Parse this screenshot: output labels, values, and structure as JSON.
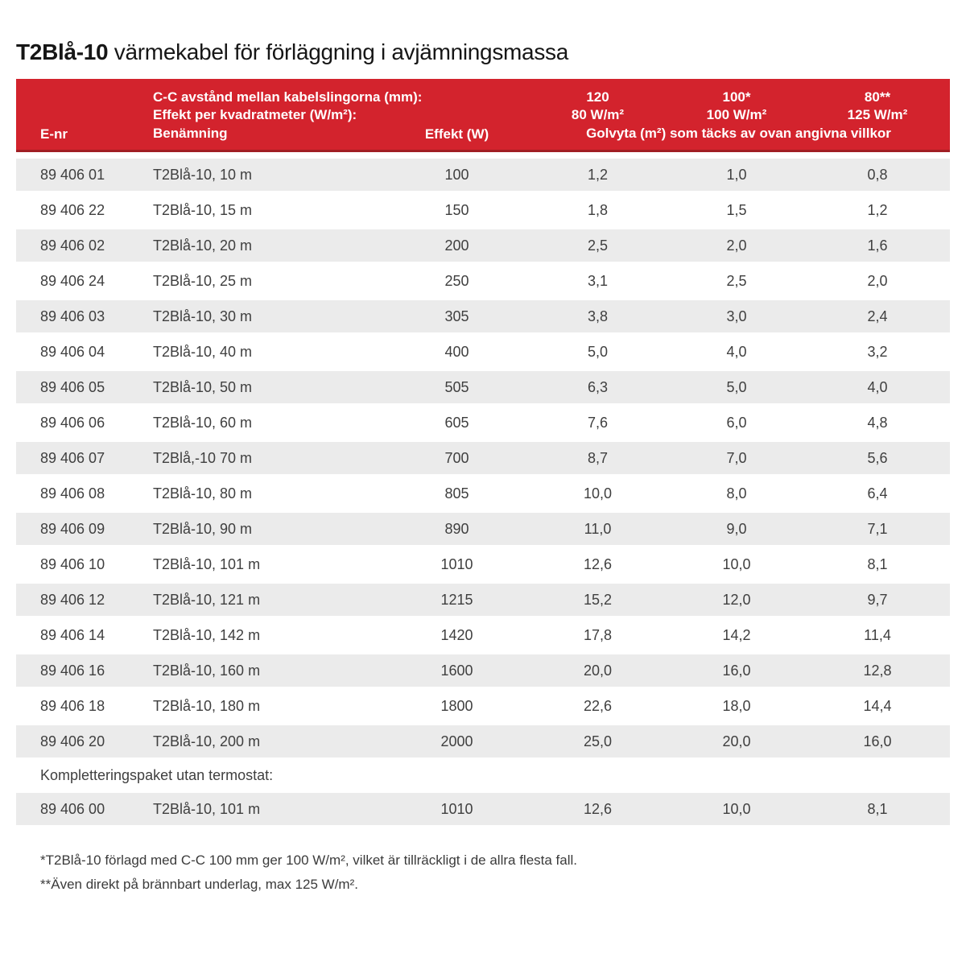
{
  "title": {
    "product": "T2Blå-10",
    "subtitle": " värmekabel för förläggning i avjämningsmassa"
  },
  "colors": {
    "header_red": "#d3232d",
    "header_dark_line": "#a01e23",
    "stripe_gray": "#ebebeb",
    "body_text": "#3f3f3f"
  },
  "table": {
    "header": {
      "enr": "E-nr",
      "name_line1": "C-C avstånd mellan kabelslingorna (mm):",
      "name_line2": "Effekt per kvadratmeter (W/m²):",
      "name_line3": "Benämning",
      "effekt": "Effekt (W)",
      "cc_columns": [
        {
          "cc": "120",
          "wm2": "80 W/m²"
        },
        {
          "cc": "100*",
          "wm2": "100 W/m²"
        },
        {
          "cc": "80**",
          "wm2": "125 W/m²"
        }
      ],
      "span_label": "Golvyta (m²) som täcks av ovan angivna villkor"
    },
    "rows": [
      {
        "enr": "89 406 01",
        "name": "T2Blå-10, 10 m",
        "effekt": "100",
        "v120": "1,2",
        "v100": "1,0",
        "v80": "0,8"
      },
      {
        "enr": "89 406 22",
        "name": "T2Blå-10, 15 m",
        "effekt": "150",
        "v120": "1,8",
        "v100": "1,5",
        "v80": "1,2"
      },
      {
        "enr": "89 406 02",
        "name": "T2Blå-10, 20 m",
        "effekt": "200",
        "v120": "2,5",
        "v100": "2,0",
        "v80": "1,6"
      },
      {
        "enr": "89 406 24",
        "name": "T2Blå-10, 25 m",
        "effekt": "250",
        "v120": "3,1",
        "v100": "2,5",
        "v80": "2,0"
      },
      {
        "enr": "89 406 03",
        "name": "T2Blå-10, 30 m",
        "effekt": "305",
        "v120": "3,8",
        "v100": "3,0",
        "v80": "2,4"
      },
      {
        "enr": "89 406 04",
        "name": "T2Blå-10, 40 m",
        "effekt": "400",
        "v120": "5,0",
        "v100": "4,0",
        "v80": "3,2"
      },
      {
        "enr": "89 406 05",
        "name": "T2Blå-10, 50 m",
        "effekt": "505",
        "v120": "6,3",
        "v100": "5,0",
        "v80": "4,0"
      },
      {
        "enr": "89 406 06",
        "name": "T2Blå-10, 60 m",
        "effekt": "605",
        "v120": "7,6",
        "v100": "6,0",
        "v80": "4,8"
      },
      {
        "enr": "89 406 07",
        "name": "T2Blå,-10 70 m",
        "effekt": "700",
        "v120": "8,7",
        "v100": "7,0",
        "v80": "5,6"
      },
      {
        "enr": "89 406 08",
        "name": "T2Blå-10, 80 m",
        "effekt": "805",
        "v120": "10,0",
        "v100": "8,0",
        "v80": "6,4"
      },
      {
        "enr": "89 406 09",
        "name": "T2Blå-10, 90 m",
        "effekt": "890",
        "v120": "11,0",
        "v100": "9,0",
        "v80": "7,1"
      },
      {
        "enr": "89 406 10",
        "name": "T2Blå-10, 101 m",
        "effekt": "1010",
        "v120": "12,6",
        "v100": "10,0",
        "v80": "8,1"
      },
      {
        "enr": "89 406 12",
        "name": "T2Blå-10, 121 m",
        "effekt": "1215",
        "v120": "15,2",
        "v100": "12,0",
        "v80": "9,7"
      },
      {
        "enr": "89 406 14",
        "name": "T2Blå-10, 142 m",
        "effekt": "1420",
        "v120": "17,8",
        "v100": "14,2",
        "v80": "11,4"
      },
      {
        "enr": "89 406 16",
        "name": "T2Blå-10, 160 m",
        "effekt": "1600",
        "v120": "20,0",
        "v100": "16,0",
        "v80": "12,8"
      },
      {
        "enr": "89 406 18",
        "name": "T2Blå-10, 180 m",
        "effekt": "1800",
        "v120": "22,6",
        "v100": "18,0",
        "v80": "14,4"
      },
      {
        "enr": "89 406 20",
        "name": "T2Blå-10, 200 m",
        "effekt": "2000",
        "v120": "25,0",
        "v100": "20,0",
        "v80": "16,0"
      }
    ],
    "section_label": "Kompletteringspaket utan termostat:",
    "extra_row": {
      "enr": "89 406 00",
      "name": "T2Blå-10, 101 m",
      "effekt": "1010",
      "v120": "12,6",
      "v100": "10,0",
      "v80": "8,1"
    }
  },
  "footnotes": [
    "*T2Blå-10 förlagd med C-C 100 mm ger 100 W/m², vilket är tillräckligt i de allra flesta fall.",
    "**Även direkt på brännbart underlag, max 125 W/m²."
  ]
}
